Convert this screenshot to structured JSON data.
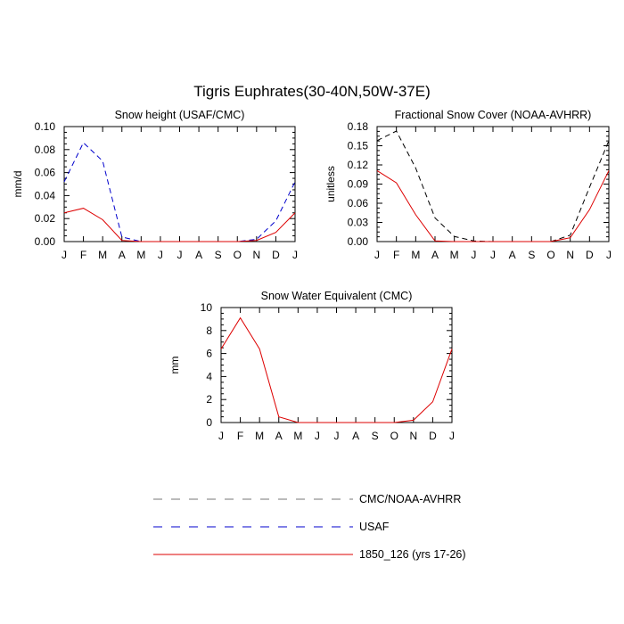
{
  "figure_title": "Tigris Euphrates(30-40N,50W-37E)",
  "colors": {
    "cmc_noaa": "#000000",
    "usaf": "#0000cc",
    "model": "#dd0000"
  },
  "legend": [
    {
      "label": "CMC/NOAA-AVHRR",
      "color": "#000000",
      "dashed": true
    },
    {
      "label": "USAF",
      "color": "#0000cc",
      "dashed": true
    },
    {
      "label": "1850_126 (yrs 17-26)",
      "color": "#dd0000",
      "dashed": false
    }
  ],
  "chart_data": [
    {
      "type": "line",
      "title": "Snow height (USAF/CMC)",
      "ylabel": "mm/d",
      "xlabel": "",
      "categories": [
        "J",
        "F",
        "M",
        "A",
        "M",
        "J",
        "J",
        "A",
        "S",
        "O",
        "N",
        "D",
        "J"
      ],
      "ylim": [
        0,
        0.1
      ],
      "yticks": [
        "0.00",
        "0.02",
        "0.04",
        "0.06",
        "0.08",
        "0.10"
      ],
      "series": [
        {
          "name": "USAF",
          "color": "#0000cc",
          "dashed": true,
          "values": [
            0.052,
            0.086,
            0.07,
            0.004,
            0.0,
            0.0,
            0.0,
            0.0,
            0.0,
            0.0,
            0.002,
            0.018,
            0.052
          ]
        },
        {
          "name": "1850_126 (yrs 17-26)",
          "color": "#dd0000",
          "dashed": false,
          "values": [
            0.025,
            0.029,
            0.019,
            0.001,
            0.0,
            0.0,
            0.0,
            0.0,
            0.0,
            0.0,
            0.001,
            0.008,
            0.025
          ]
        }
      ]
    },
    {
      "type": "line",
      "title": "Fractional Snow Cover (NOAA-AVHRR)",
      "ylabel": "unitless",
      "xlabel": "",
      "categories": [
        "J",
        "F",
        "M",
        "A",
        "M",
        "J",
        "J",
        "A",
        "S",
        "O",
        "N",
        "D",
        "J"
      ],
      "ylim": [
        0,
        0.18
      ],
      "yticks": [
        "0.00",
        "0.03",
        "0.06",
        "0.09",
        "0.12",
        "0.15",
        "0.18"
      ],
      "series": [
        {
          "name": "CMC/NOAA-AVHRR",
          "color": "#000000",
          "dashed": true,
          "values": [
            0.158,
            0.173,
            0.115,
            0.037,
            0.008,
            0.001,
            0.0,
            0.0,
            0.0,
            0.0,
            0.01,
            0.085,
            0.158
          ]
        },
        {
          "name": "1850_126 (yrs 17-26)",
          "color": "#dd0000",
          "dashed": false,
          "values": [
            0.111,
            0.092,
            0.042,
            0.001,
            0.0,
            0.0,
            0.0,
            0.0,
            0.0,
            0.0,
            0.006,
            0.05,
            0.111
          ]
        }
      ]
    },
    {
      "type": "line",
      "title": "Snow Water Equivalent (CMC)",
      "ylabel": "mm",
      "xlabel": "",
      "categories": [
        "J",
        "F",
        "M",
        "A",
        "M",
        "J",
        "J",
        "A",
        "S",
        "O",
        "N",
        "D",
        "J"
      ],
      "ylim": [
        0,
        10
      ],
      "yticks": [
        "0",
        "2",
        "4",
        "6",
        "8",
        "10"
      ],
      "series": [
        {
          "name": "CMC/NOAA-AVHRR",
          "color": "#000000",
          "dashed": true,
          "values": [
            0,
            0,
            0,
            0,
            0,
            0,
            0,
            0,
            0,
            0,
            0,
            0,
            0
          ]
        },
        {
          "name": "1850_126 (yrs 17-26)",
          "color": "#dd0000",
          "dashed": false,
          "values": [
            6.4,
            9.1,
            6.4,
            0.5,
            0.0,
            0.0,
            0.0,
            0.0,
            0.0,
            0.0,
            0.2,
            1.8,
            6.4
          ]
        }
      ]
    }
  ]
}
